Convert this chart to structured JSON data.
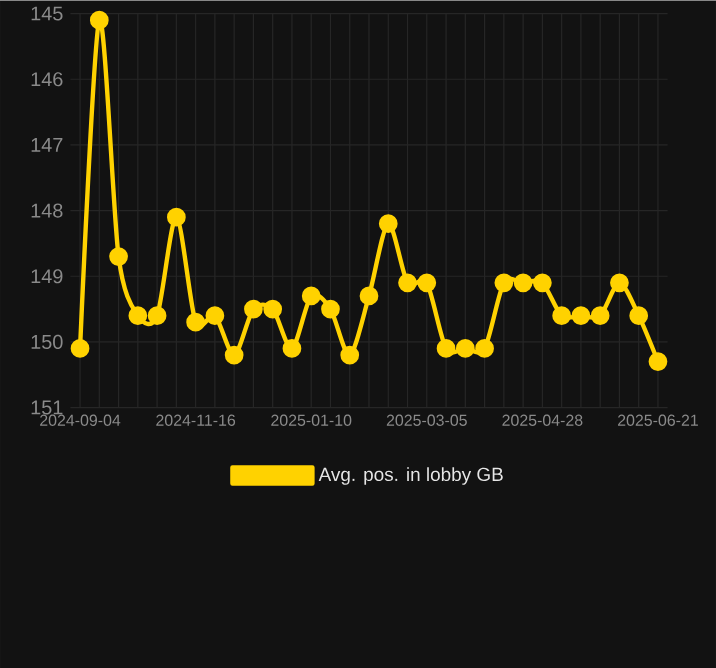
{
  "chart_data": {
    "type": "line",
    "categories": [
      "2024-09-04",
      null,
      null,
      null,
      null,
      null,
      "2024-11-16",
      null,
      null,
      null,
      null,
      null,
      "2025-01-10",
      null,
      null,
      null,
      null,
      null,
      "2025-03-05",
      null,
      null,
      null,
      null,
      null,
      "2025-04-28",
      null,
      null,
      null,
      null,
      null,
      "2025-06-21"
    ],
    "series": [
      {
        "name": "Avg. pos. in lobby GB",
        "color": "#ffd200",
        "values": [
          150.1,
          145.1,
          148.7,
          149.6,
          149.6,
          148.1,
          149.7,
          149.6,
          150.2,
          149.5,
          149.5,
          150.1,
          149.3,
          149.5,
          150.2,
          149.3,
          148.2,
          149.1,
          149.1,
          150.1,
          150.1,
          150.1,
          149.1,
          149.1,
          149.1,
          149.6,
          149.6,
          149.6,
          149.1,
          149.6,
          150.3
        ]
      }
    ],
    "ylim": [
      151,
      145
    ],
    "yticks": [
      145,
      146,
      147,
      148,
      149,
      150,
      151
    ],
    "grid": true,
    "legend": "bottom",
    "marker": "circle",
    "line_style": "solid"
  }
}
